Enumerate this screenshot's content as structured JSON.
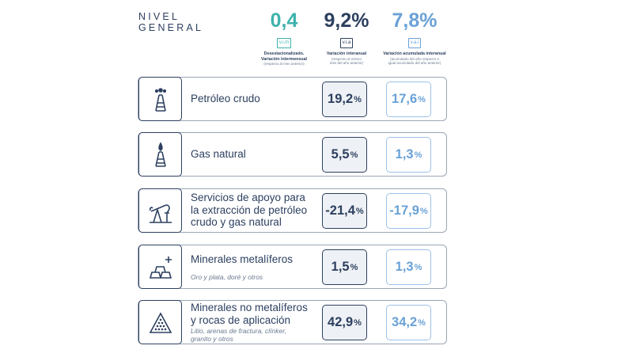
{
  "header": {
    "title_line1": "NIVEL",
    "title_line2": "GENERAL"
  },
  "indicators": [
    {
      "value": "0,4",
      "tag": "v.i.m",
      "label": "Desestacionalizado. Variación intermensual",
      "note": "(respecto al mes anterior)"
    },
    {
      "value": "9,2%",
      "tag": "v.i.a",
      "label": "Variación interanual",
      "note": "(respecto al mismo mes del año anterior)"
    },
    {
      "value": "7,8%",
      "tag": "v.a.i",
      "label": "Variación acumulada interanual",
      "note": "(acumulado del año respecto a igual acumulado del año anterior)"
    }
  ],
  "rows": [
    {
      "title": "Petróleo crudo",
      "subtitle": "",
      "via": "19,2",
      "vai": "17,6",
      "icon": "oil-derrick-icon"
    },
    {
      "title": "Gas natural",
      "subtitle": "",
      "via": "5,5",
      "vai": "1,3",
      "icon": "gas-flame-tower-icon"
    },
    {
      "title_lines": [
        "Servicios de apoyo para",
        "la extracción de petróleo",
        "crudo y gas natural"
      ],
      "subtitle": "",
      "via": "-21,4",
      "vai": "-17,9",
      "icon": "pump-jack-icon"
    },
    {
      "title": "Minerales metalíferos",
      "subtitle": "Oro y plata, doré y otros",
      "via": "1,5",
      "vai": "1,3",
      "icon": "gold-bars-icon"
    },
    {
      "title_lines": [
        "Minerales no metalíferos",
        "y rocas de aplicación"
      ],
      "subtitle_lines": [
        "Litio, arenas de fractura, clínker,",
        "granito y otros"
      ],
      "via": "42,9",
      "vai": "34,2",
      "icon": "rock-pile-icon"
    }
  ],
  "percent_sign": "%",
  "colors": {
    "teal": "#3fb2ad",
    "navy": "#2d4060",
    "light_blue": "#6aa1d6"
  }
}
